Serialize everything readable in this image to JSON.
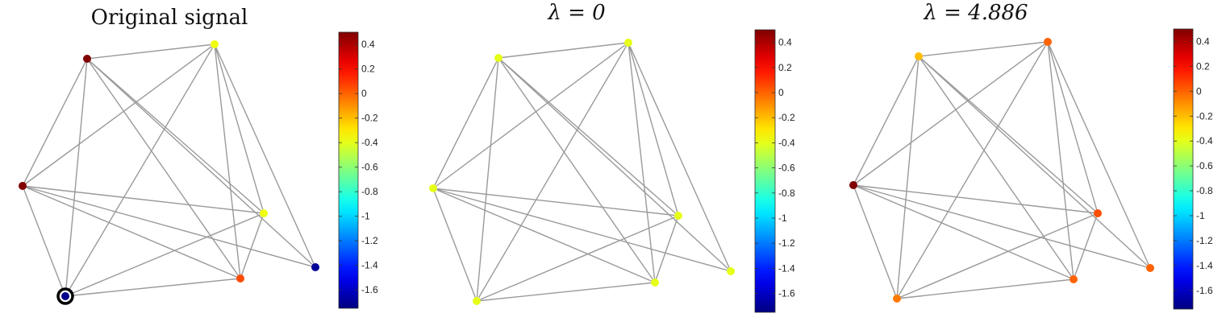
{
  "chart_data": [
    {
      "type": "graph",
      "title": "Original signal",
      "title_math": false,
      "colorbar": {
        "colormap": "jet",
        "range": [
          -1.75,
          0.5
        ],
        "tick_values": [
          0.4,
          0.2,
          0,
          -0.2,
          -0.4,
          -0.6,
          -0.8,
          -1,
          -1.2,
          -1.4,
          -1.6
        ],
        "tick_labels": [
          "0.4",
          "0.2",
          "0",
          "-0.2",
          "-0.4",
          "-0.6",
          "-0.8",
          "-1",
          "-1.2",
          "-1.4",
          "-1.6"
        ]
      },
      "node_values": [
        0.5,
        -0.38,
        0.5,
        -0.38,
        -1.7,
        0.05,
        -1.72
      ],
      "highlighted_node": 6
    },
    {
      "type": "graph",
      "title": "λ = 0",
      "title_math": true,
      "colorbar": {
        "colormap": "jet",
        "range": [
          -1.75,
          0.5
        ],
        "tick_values": [
          0.4,
          0.2,
          0,
          -0.2,
          -0.4,
          -0.6,
          -0.8,
          -1,
          -1.2,
          -1.4,
          -1.6
        ],
        "tick_labels": [
          "0.4",
          "0.2",
          "0",
          "-0.2",
          "-0.4",
          "-0.6",
          "-0.8",
          "-1",
          "-1.2",
          "-1.4",
          "-1.6"
        ]
      },
      "node_values": [
        -0.4,
        -0.4,
        -0.4,
        -0.4,
        -0.4,
        -0.4,
        -0.4
      ],
      "highlighted_node": null
    },
    {
      "type": "graph",
      "title": "λ = 4.886",
      "title_math": true,
      "colorbar": {
        "colormap": "jet",
        "range": [
          -1.75,
          0.5
        ],
        "tick_values": [
          0.4,
          0.2,
          0,
          -0.2,
          -0.4,
          -0.6,
          -0.8,
          -1,
          -1.2,
          -1.4,
          -1.6
        ],
        "tick_labels": [
          "0.4",
          "0.2",
          "0",
          "-0.2",
          "-0.4",
          "-0.6",
          "-0.8",
          "-1",
          "-1.2",
          "-1.4",
          "-1.6"
        ]
      },
      "node_values": [
        -0.2,
        0.0,
        0.5,
        0.05,
        0.0,
        0.0,
        -0.05
      ],
      "highlighted_node": null
    }
  ]
}
